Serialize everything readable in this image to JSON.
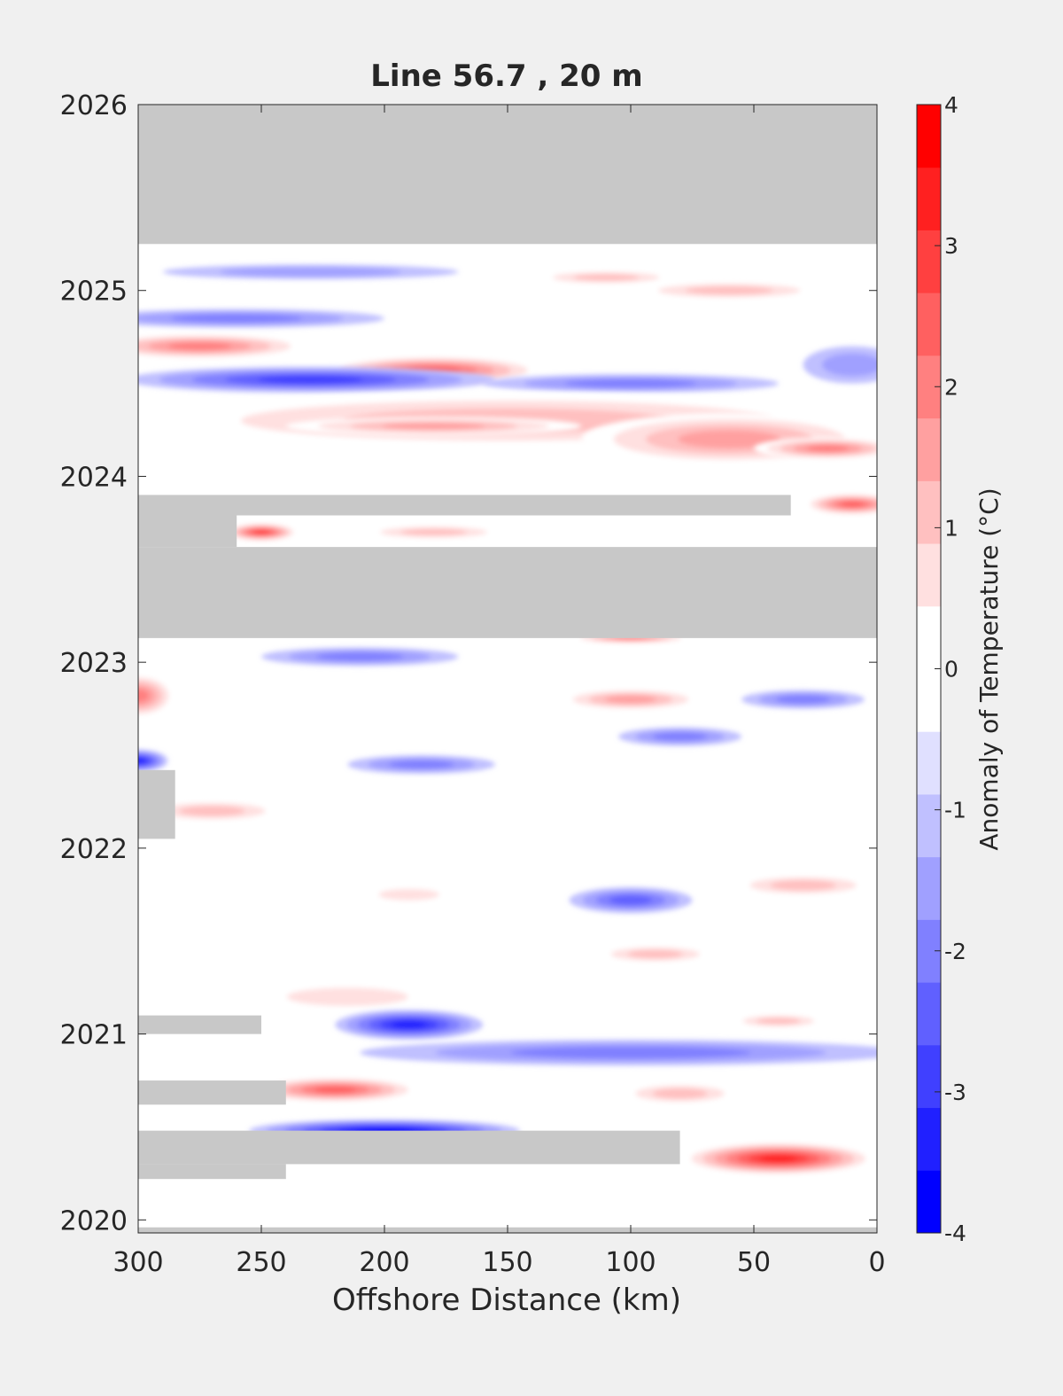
{
  "chart_data": {
    "type": "heatmap",
    "title": "Line 56.7 , 20 m",
    "xlabel": "Offshore Distance (km)",
    "ylabel": "",
    "xlim": [
      300,
      0
    ],
    "x_reversed": true,
    "ylim": [
      2019.93,
      2026
    ],
    "xticks": [
      300,
      250,
      200,
      150,
      100,
      50,
      0
    ],
    "yticks": [
      2020,
      2021,
      2022,
      2023,
      2024,
      2025,
      2026
    ],
    "colorbar": {
      "label": "Anomaly of Temperature (°C)",
      "range": [
        -4,
        4
      ],
      "ticks": [
        4,
        3,
        2,
        1,
        0,
        -1,
        -2,
        -3,
        -4
      ],
      "step": 0.5,
      "colors": [
        "#0000ff",
        "#2020ff",
        "#4040ff",
        "#6060ff",
        "#8080ff",
        "#a0a0ff",
        "#c0c0ff",
        "#e0e0ff",
        "#ffffff",
        "#ffffff",
        "#ffe0e0",
        "#ffc0c0",
        "#ffa0a0",
        "#ff8080",
        "#ff6060",
        "#ff4040",
        "#ff2020",
        "#ff0000"
      ]
    },
    "no_data_color": "#c8c8c8",
    "no_data_regions": [
      {
        "x": [
          300,
          0
        ],
        "y": [
          2025.25,
          2026.0
        ]
      },
      {
        "x": [
          300,
          0
        ],
        "y": [
          2023.13,
          2023.62
        ]
      },
      {
        "x": [
          300,
          35
        ],
        "y": [
          2023.79,
          2023.9
        ]
      },
      {
        "x": [
          300,
          260
        ],
        "y": [
          2023.62,
          2023.79
        ]
      },
      {
        "x": [
          300,
          80
        ],
        "y": [
          2020.3,
          2020.48
        ]
      },
      {
        "x": [
          300,
          240
        ],
        "y": [
          2020.22,
          2020.3
        ]
      },
      {
        "x": [
          300,
          240
        ],
        "y": [
          2020.62,
          2020.75
        ]
      },
      {
        "x": [
          300,
          250
        ],
        "y": [
          2021.0,
          2021.1
        ]
      },
      {
        "x": [
          300,
          285
        ],
        "y": [
          2022.05,
          2022.42
        ]
      },
      {
        "x": [
          300,
          0
        ],
        "y": [
          2019.93,
          2019.96
        ]
      }
    ],
    "anomaly_features": [
      {
        "x": 275,
        "y": 2024.7,
        "rx": 45,
        "ry": 0.07,
        "value": 2.5
      },
      {
        "x": 180,
        "y": 2024.57,
        "rx": 45,
        "ry": 0.08,
        "value": 3.0
      },
      {
        "x": 230,
        "y": 2024.52,
        "rx": 75,
        "ry": 0.07,
        "value": -2.5
      },
      {
        "x": 100,
        "y": 2024.5,
        "rx": 60,
        "ry": 0.05,
        "value": -1.5
      },
      {
        "x": 10,
        "y": 2024.6,
        "rx": 20,
        "ry": 0.1,
        "value": -1.0
      },
      {
        "x": 260,
        "y": 2024.85,
        "rx": 60,
        "ry": 0.05,
        "value": -1.5
      },
      {
        "x": 150,
        "y": 2024.3,
        "rx": 150,
        "ry": 0.15,
        "value": 1.5
      },
      {
        "x": 60,
        "y": 2024.2,
        "rx": 60,
        "ry": 0.14,
        "value": 2.0
      },
      {
        "x": 20,
        "y": 2024.15,
        "rx": 30,
        "ry": 0.06,
        "value": 2.5
      },
      {
        "x": 180,
        "y": 2024.27,
        "rx": 60,
        "ry": 0.05,
        "value": 2.0
      },
      {
        "x": 10,
        "y": 2023.85,
        "rx": 20,
        "ry": 0.06,
        "value": 3.0
      },
      {
        "x": 250,
        "y": 2023.7,
        "rx": 15,
        "ry": 0.05,
        "value": 3.5
      },
      {
        "x": 180,
        "y": 2023.7,
        "rx": 30,
        "ry": 0.04,
        "value": 1.5
      },
      {
        "x": 300,
        "y": 2022.82,
        "rx": 15,
        "ry": 0.12,
        "value": 2.5
      },
      {
        "x": 300,
        "y": 2022.47,
        "rx": 12,
        "ry": 0.06,
        "value": -3.0
      },
      {
        "x": 100,
        "y": 2022.8,
        "rx": 30,
        "ry": 0.06,
        "value": 2.0
      },
      {
        "x": 80,
        "y": 2022.6,
        "rx": 25,
        "ry": 0.05,
        "value": -1.5
      },
      {
        "x": 185,
        "y": 2022.45,
        "rx": 30,
        "ry": 0.05,
        "value": -1.5
      },
      {
        "x": 30,
        "y": 2022.8,
        "rx": 25,
        "ry": 0.05,
        "value": -1.5
      },
      {
        "x": 270,
        "y": 2022.2,
        "rx": 30,
        "ry": 0.06,
        "value": 1.5
      },
      {
        "x": 30,
        "y": 2021.8,
        "rx": 30,
        "ry": 0.06,
        "value": 1.5
      },
      {
        "x": 100,
        "y": 2021.72,
        "rx": 25,
        "ry": 0.07,
        "value": -2.0
      },
      {
        "x": 190,
        "y": 2021.75,
        "rx": 20,
        "ry": 0.05,
        "value": 1.0
      },
      {
        "x": 215,
        "y": 2021.2,
        "rx": 40,
        "ry": 0.08,
        "value": 1.0
      },
      {
        "x": 190,
        "y": 2021.05,
        "rx": 30,
        "ry": 0.08,
        "value": -3.0
      },
      {
        "x": 100,
        "y": 2020.9,
        "rx": 110,
        "ry": 0.07,
        "value": -1.5
      },
      {
        "x": 80,
        "y": 2020.68,
        "rx": 25,
        "ry": 0.06,
        "value": 1.5
      },
      {
        "x": 40,
        "y": 2021.07,
        "rx": 20,
        "ry": 0.04,
        "value": 1.5
      },
      {
        "x": 220,
        "y": 2020.7,
        "rx": 35,
        "ry": 0.07,
        "value": 3.0
      },
      {
        "x": 200,
        "y": 2020.48,
        "rx": 55,
        "ry": 0.06,
        "value": -3.5
      },
      {
        "x": 40,
        "y": 2020.33,
        "rx": 40,
        "ry": 0.09,
        "value": 4.0
      },
      {
        "x": 90,
        "y": 2021.43,
        "rx": 25,
        "ry": 0.05,
        "value": 1.5
      },
      {
        "x": 210,
        "y": 2023.03,
        "rx": 40,
        "ry": 0.05,
        "value": -1.5
      },
      {
        "x": 100,
        "y": 2023.13,
        "rx": 25,
        "ry": 0.03,
        "value": 2.5
      },
      {
        "x": 110,
        "y": 2025.07,
        "rx": 30,
        "ry": 0.04,
        "value": 1.5
      },
      {
        "x": 230,
        "y": 2025.1,
        "rx": 60,
        "ry": 0.04,
        "value": -1.0
      },
      {
        "x": 60,
        "y": 2025.0,
        "rx": 40,
        "ry": 0.05,
        "value": 1.5
      }
    ]
  }
}
